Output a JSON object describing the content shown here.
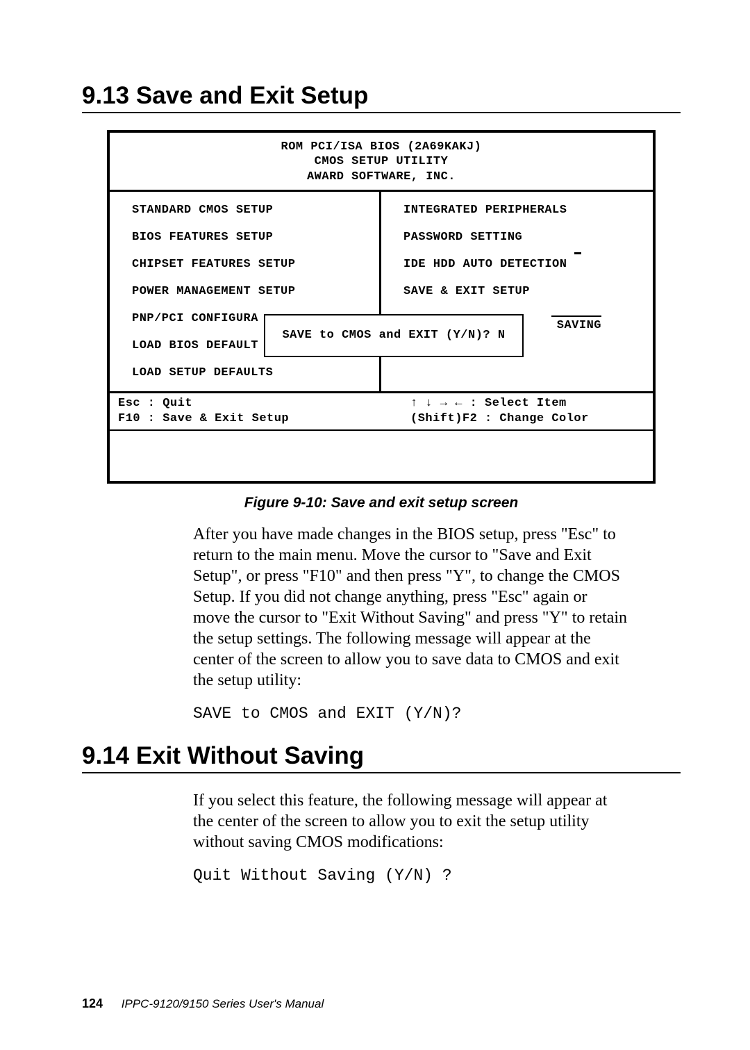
{
  "section913": {
    "title": "9.13 Save and Exit Setup",
    "bios": {
      "header_line1": "ROM PCI/ISA BIOS (2A69KAKJ)",
      "header_line2": "CMOS SETUP UTILITY",
      "header_line3": "AWARD SOFTWARE, INC.",
      "left_items": [
        "STANDARD CMOS SETUP",
        "BIOS FEATURES SETUP",
        "CHIPSET FEATURES SETUP",
        "POWER MANAGEMENT SETUP",
        "PNP/PCI CONFIGURA",
        "LOAD BIOS DEFAULT",
        "LOAD SETUP DEFAULTS"
      ],
      "right_items": [
        "INTEGRATED PERIPHERALS",
        "PASSWORD SETTING",
        "IDE HDD AUTO DETECTION",
        "SAVE & EXIT SETUP"
      ],
      "dialog_text": "SAVE to CMOS and EXIT (Y/N)? N",
      "saving_label": "SAVING",
      "footer_left1": "Esc : Quit",
      "footer_left2": "F10 : Save & Exit Setup",
      "footer_right1": "↑ ↓ → ←   : Select Item",
      "footer_right2": "(Shift)F2 : Change Color"
    },
    "figure_caption": "Figure 9-10: Save and exit setup screen",
    "body": "After you have made changes in the BIOS setup, press \"Esc\" to return to the main menu. Move the cursor to \"Save and Exit Setup\", or press \"F10\" and then press \"Y\", to change the CMOS Setup. If you did not change anything, press \"Esc\" again or move the cursor to \"Exit Without Saving\" and press \"Y\" to retain the setup settings. The following message will appear at the center of the screen to allow you to save data to CMOS and exit the setup utility:",
    "code": "SAVE to CMOS and EXIT (Y/N)?"
  },
  "section914": {
    "title": "9.14 Exit Without Saving",
    "body": "If you select this feature, the following message will appear at the center of the screen to allow you to exit the setup utility without saving CMOS modifications:",
    "code": "Quit Without Saving (Y/N) ?"
  },
  "footer": {
    "page": "124",
    "manual": "IPPC-9120/9150 Series User's Manual"
  },
  "colors": {
    "text": "#000000",
    "background": "#ffffff",
    "border": "#000000"
  }
}
